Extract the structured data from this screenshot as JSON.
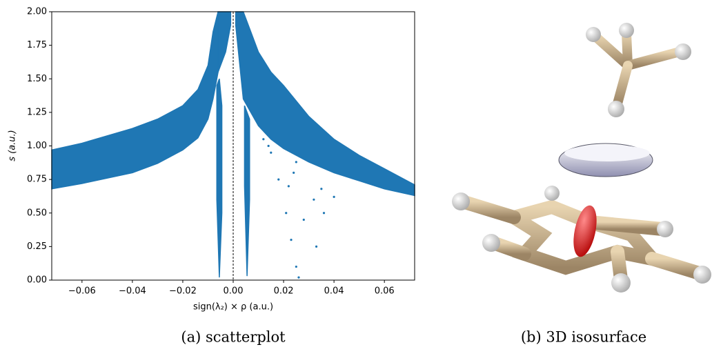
{
  "chart_data": {
    "type": "scatter",
    "xlabel": "sign(λ₂) × ρ (a.u.)",
    "ylabel": "s (a.u.)",
    "xlim": [
      -0.072,
      0.072
    ],
    "ylim": [
      0,
      2
    ],
    "xticks": [
      {
        "value": -0.06,
        "label": "−0.06"
      },
      {
        "value": -0.04,
        "label": "−0.04"
      },
      {
        "value": -0.02,
        "label": "−0.02"
      },
      {
        "value": 0,
        "label": "0.00"
      },
      {
        "value": 0.02,
        "label": "0.02"
      },
      {
        "value": 0.04,
        "label": "0.04"
      },
      {
        "value": 0.06,
        "label": "0.06"
      }
    ],
    "yticks": [
      {
        "value": 0,
        "label": "0.00"
      },
      {
        "value": 0.25,
        "label": "0.25"
      },
      {
        "value": 0.5,
        "label": "0.50"
      },
      {
        "value": 0.75,
        "label": "0.75"
      },
      {
        "value": 1,
        "label": "1.00"
      },
      {
        "value": 1.25,
        "label": "1.25"
      },
      {
        "value": 1.5,
        "label": "1.50"
      },
      {
        "value": 1.75,
        "label": "1.75"
      },
      {
        "value": 2,
        "label": "2.00"
      }
    ],
    "vline": 0,
    "series": [
      {
        "kind": "band",
        "color": "#1f77b4",
        "x": [
          -0.072,
          -0.06,
          -0.04,
          -0.03,
          -0.02,
          -0.014,
          -0.01,
          -0.008,
          -0.006
        ],
        "upper": [
          0.97,
          1.02,
          1.13,
          1.2,
          1.3,
          1.42,
          1.6,
          1.85,
          2.0
        ],
        "lower": [
          0.68,
          0.72,
          0.8,
          0.87,
          0.97,
          1.06,
          1.2,
          1.35,
          1.55
        ]
      },
      {
        "kind": "band",
        "color": "#1f77b4",
        "x": [
          -0.0065,
          -0.0055,
          -0.0045
        ],
        "upper": [
          1.45,
          1.5,
          1.3
        ],
        "lower": [
          0.6,
          0.02,
          0.5
        ]
      },
      {
        "kind": "band",
        "color": "#1f77b4",
        "x": [
          -0.006,
          -0.003,
          -0.001
        ],
        "upper": [
          2.0,
          2.0,
          2.0
        ],
        "lower": [
          1.55,
          1.7,
          1.9
        ]
      },
      {
        "kind": "band",
        "color": "#1f77b4",
        "x": [
          0.001,
          0.004,
          0.007,
          0.01,
          0.015,
          0.02,
          0.03,
          0.04,
          0.05,
          0.06,
          0.072
        ],
        "upper": [
          2.0,
          2.0,
          1.85,
          1.7,
          1.55,
          1.45,
          1.22,
          1.05,
          0.93,
          0.83,
          0.71
        ],
        "lower": [
          1.9,
          1.35,
          1.25,
          1.15,
          1.05,
          0.98,
          0.88,
          0.8,
          0.74,
          0.68,
          0.63
        ]
      },
      {
        "kind": "band",
        "color": "#1f77b4",
        "x": [
          0.0045,
          0.0055,
          0.0065
        ],
        "upper": [
          1.3,
          1.25,
          1.2
        ],
        "lower": [
          0.7,
          0.03,
          0.6
        ]
      },
      {
        "kind": "points",
        "color": "#1f77b4",
        "x": [
          0.018,
          0.021,
          0.023,
          0.025,
          0.026,
          0.015,
          0.022,
          0.028,
          0.033,
          0.014,
          0.024,
          0.032,
          0.036,
          0.012,
          0.025,
          0.035,
          0.04
        ],
        "values": [
          0.75,
          0.5,
          0.3,
          0.1,
          0.02,
          0.95,
          0.7,
          0.45,
          0.25,
          1.0,
          0.8,
          0.6,
          0.5,
          1.05,
          0.88,
          0.68,
          0.62
        ]
      }
    ]
  },
  "captions": [
    "(a) scatterplot",
    "(b) 3D isosurface"
  ]
}
